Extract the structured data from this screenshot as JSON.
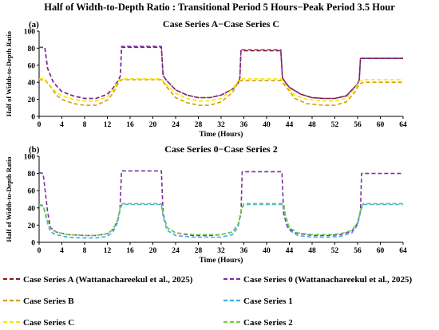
{
  "figure": {
    "title": "Half of Width-to-Depth Ratio  : Transitional Period 5 Hours−Peak Period 3.5 Hour"
  },
  "chart_data": [
    {
      "type": "line",
      "panel_label": "(a)",
      "title": "Case Series A−Case Series C",
      "xlabel": "Time (Hours)",
      "ylabel": "Half of Width-to-Depth Ratio",
      "xlim": [
        0,
        64
      ],
      "ylim": [
        0,
        100
      ],
      "xticks": [
        "0",
        "4",
        "8",
        "12",
        "16",
        "20",
        "24",
        "28",
        "32",
        "36",
        "40",
        "44",
        "48",
        "52",
        "56",
        "60",
        "64"
      ],
      "yticks": [
        "0",
        "20",
        "40",
        "60",
        "80",
        "100"
      ],
      "grid": false,
      "series": [
        {
          "name": "Case Series A (Wattanachareekul et al., 2025)",
          "color": "#8B1A1A",
          "points": [
            [
              0,
              81
            ],
            [
              1,
              81
            ],
            [
              1.5,
              56
            ],
            [
              2.5,
              40
            ],
            [
              4,
              29
            ],
            [
              6,
              24
            ],
            [
              8,
              21
            ],
            [
              10,
              21
            ],
            [
              12,
              26
            ],
            [
              13,
              33
            ],
            [
              14,
              43
            ],
            [
              14.3,
              48
            ],
            [
              14.5,
              81
            ],
            [
              21.5,
              81
            ],
            [
              21.8,
              48
            ],
            [
              22.3,
              43
            ],
            [
              23,
              38
            ],
            [
              24,
              31
            ],
            [
              26,
              25
            ],
            [
              28,
              22
            ],
            [
              30,
              22
            ],
            [
              32,
              25
            ],
            [
              34,
              32
            ],
            [
              35,
              39
            ],
            [
              35.3,
              45
            ],
            [
              35.5,
              77
            ],
            [
              42.5,
              77
            ],
            [
              42.8,
              45
            ],
            [
              43.3,
              40
            ],
            [
              44,
              34
            ],
            [
              46,
              26
            ],
            [
              48,
              22
            ],
            [
              50,
              21
            ],
            [
              52,
              21
            ],
            [
              54,
              24
            ],
            [
              55,
              31
            ],
            [
              56,
              38
            ],
            [
              56.3,
              43
            ],
            [
              56.5,
              68
            ],
            [
              64,
              68
            ]
          ]
        },
        {
          "name": "Case Series 0  (Wattanachareekul et al., 2025)",
          "color": "#7B2FA0",
          "points": [
            [
              0,
              81
            ],
            [
              1,
              81
            ],
            [
              1.5,
              56
            ],
            [
              2.5,
              40
            ],
            [
              4,
              29
            ],
            [
              6,
              24
            ],
            [
              8,
              21
            ],
            [
              10,
              21
            ],
            [
              12,
              26
            ],
            [
              13,
              33
            ],
            [
              14,
              43
            ],
            [
              14.3,
              48
            ],
            [
              14.5,
              82
            ],
            [
              21.5,
              82
            ],
            [
              21.8,
              48
            ],
            [
              22.3,
              43
            ],
            [
              23,
              38
            ],
            [
              24,
              31
            ],
            [
              26,
              25
            ],
            [
              28,
              22
            ],
            [
              30,
              22
            ],
            [
              32,
              25
            ],
            [
              34,
              32
            ],
            [
              35,
              39
            ],
            [
              35.3,
              45
            ],
            [
              35.5,
              78
            ],
            [
              42.5,
              78
            ],
            [
              42.8,
              45
            ],
            [
              43.3,
              40
            ],
            [
              44,
              34
            ],
            [
              46,
              26
            ],
            [
              48,
              22
            ],
            [
              50,
              21
            ],
            [
              52,
              21
            ],
            [
              54,
              24
            ],
            [
              55,
              31
            ],
            [
              56,
              38
            ],
            [
              56.3,
              43
            ],
            [
              56.5,
              68
            ],
            [
              64,
              68
            ]
          ]
        },
        {
          "name": "Case Series B",
          "color": "#D4A000",
          "points": [
            [
              0,
              43
            ],
            [
              1,
              43
            ],
            [
              2,
              35
            ],
            [
              3,
              25
            ],
            [
              4,
              20
            ],
            [
              6,
              15
            ],
            [
              8,
              13
            ],
            [
              10,
              13
            ],
            [
              12,
              19
            ],
            [
              13,
              27
            ],
            [
              14,
              40
            ],
            [
              14.5,
              43
            ],
            [
              21.5,
              43
            ],
            [
              22.5,
              34
            ],
            [
              24,
              22
            ],
            [
              26,
              16
            ],
            [
              28,
              13
            ],
            [
              30,
              13
            ],
            [
              32,
              17
            ],
            [
              34,
              28
            ],
            [
              35,
              40
            ],
            [
              35.5,
              42
            ],
            [
              42.5,
              42
            ],
            [
              43.5,
              34
            ],
            [
              45,
              21
            ],
            [
              47,
              15
            ],
            [
              50,
              13
            ],
            [
              52,
              13
            ],
            [
              54,
              17
            ],
            [
              55.5,
              28
            ],
            [
              56.3,
              38
            ],
            [
              57,
              40
            ],
            [
              64,
              40
            ]
          ]
        },
        {
          "name": "Case Series C",
          "color": "#F2E600",
          "points": [
            [
              0,
              44
            ],
            [
              1,
              44
            ],
            [
              2,
              36
            ],
            [
              3,
              28
            ],
            [
              4,
              24
            ],
            [
              6,
              20
            ],
            [
              8,
              18
            ],
            [
              10,
              18
            ],
            [
              12,
              23
            ],
            [
              13,
              31
            ],
            [
              14,
              42
            ],
            [
              14.5,
              44
            ],
            [
              21.5,
              44
            ],
            [
              22.5,
              36
            ],
            [
              24,
              27
            ],
            [
              26,
              21
            ],
            [
              28,
              18
            ],
            [
              30,
              18
            ],
            [
              32,
              21
            ],
            [
              34,
              32
            ],
            [
              35,
              42
            ],
            [
              35.5,
              44
            ],
            [
              42.5,
              44
            ],
            [
              43.5,
              36
            ],
            [
              45,
              25
            ],
            [
              47,
              20
            ],
            [
              50,
              18
            ],
            [
              52,
              18
            ],
            [
              54,
              21
            ],
            [
              55.5,
              32
            ],
            [
              56.3,
              41
            ],
            [
              57,
              43
            ],
            [
              64,
              43
            ]
          ]
        }
      ]
    },
    {
      "type": "line",
      "panel_label": "(b)",
      "title": "Case Series 0−Case Series 2",
      "xlabel": "Time (Hours)",
      "ylabel": "Half of Width-to-Depth Ratio",
      "xlim": [
        0,
        64
      ],
      "ylim": [
        0,
        100
      ],
      "xticks": [
        "0",
        "4",
        "8",
        "12",
        "16",
        "20",
        "24",
        "28",
        "32",
        "36",
        "40",
        "44",
        "48",
        "52",
        "56",
        "60",
        "64"
      ],
      "yticks": [
        "0",
        "20",
        "40",
        "60",
        "80",
        "100"
      ],
      "grid": false,
      "series": [
        {
          "name": "Case Series 0  (Wattanachareekul et al., 2025)",
          "color": "#7B2FA0",
          "points": [
            [
              0,
              81
            ],
            [
              0.7,
              80
            ],
            [
              1,
              64
            ],
            [
              1.5,
              35
            ],
            [
              2,
              17
            ],
            [
              3,
              12
            ],
            [
              5,
              9
            ],
            [
              8,
              8
            ],
            [
              10,
              8
            ],
            [
              12,
              10
            ],
            [
              13,
              15
            ],
            [
              13.8,
              25
            ],
            [
              14.2,
              37
            ],
            [
              14.5,
              83
            ],
            [
              21.5,
              83
            ],
            [
              21.8,
              34
            ],
            [
              22.5,
              17
            ],
            [
              24,
              11
            ],
            [
              27,
              8
            ],
            [
              30,
              8
            ],
            [
              32,
              9
            ],
            [
              34,
              12
            ],
            [
              35,
              21
            ],
            [
              35.5,
              33
            ],
            [
              35.7,
              82
            ],
            [
              42.7,
              82
            ],
            [
              43,
              33
            ],
            [
              43.7,
              17
            ],
            [
              45,
              11
            ],
            [
              48,
              8
            ],
            [
              51,
              8
            ],
            [
              53,
              9
            ],
            [
              55,
              13
            ],
            [
              56,
              22
            ],
            [
              56.5,
              36
            ],
            [
              56.7,
              80
            ],
            [
              64,
              80
            ]
          ]
        },
        {
          "name": "Case Series 1",
          "color": "#3BAEE6",
          "points": [
            [
              0,
              43
            ],
            [
              0.7,
              42
            ],
            [
              1,
              35
            ],
            [
              1.5,
              22
            ],
            [
              2,
              12
            ],
            [
              3,
              9
            ],
            [
              5,
              6
            ],
            [
              8,
              5
            ],
            [
              10,
              5
            ],
            [
              12,
              7
            ],
            [
              13,
              12
            ],
            [
              13.8,
              23
            ],
            [
              14.3,
              40
            ],
            [
              14.6,
              44
            ],
            [
              21.5,
              44
            ],
            [
              21.8,
              30
            ],
            [
              22.5,
              14
            ],
            [
              24,
              8
            ],
            [
              27,
              6
            ],
            [
              30,
              6
            ],
            [
              32,
              6
            ],
            [
              34,
              9
            ],
            [
              35,
              18
            ],
            [
              35.6,
              38
            ],
            [
              36,
              44
            ],
            [
              43,
              44
            ],
            [
              43.3,
              30
            ],
            [
              44,
              14
            ],
            [
              45.5,
              8
            ],
            [
              48,
              6
            ],
            [
              51,
              6
            ],
            [
              53,
              7
            ],
            [
              55,
              11
            ],
            [
              56,
              20
            ],
            [
              56.6,
              38
            ],
            [
              57,
              44
            ],
            [
              64,
              44
            ]
          ]
        },
        {
          "name": "Case Series 2",
          "color": "#7AC943",
          "points": [
            [
              0,
              44
            ],
            [
              0.7,
              43
            ],
            [
              1,
              37
            ],
            [
              1.5,
              25
            ],
            [
              2,
              15
            ],
            [
              3,
              12
            ],
            [
              5,
              9
            ],
            [
              8,
              8
            ],
            [
              10,
              8
            ],
            [
              12,
              10
            ],
            [
              13,
              15
            ],
            [
              13.8,
              26
            ],
            [
              14.3,
              42
            ],
            [
              14.6,
              45
            ],
            [
              21.5,
              45
            ],
            [
              21.8,
              32
            ],
            [
              22.5,
              17
            ],
            [
              24,
              11
            ],
            [
              27,
              9
            ],
            [
              30,
              9
            ],
            [
              32,
              9
            ],
            [
              34,
              12
            ],
            [
              35,
              21
            ],
            [
              35.6,
              40
            ],
            [
              36,
              45
            ],
            [
              43,
              45
            ],
            [
              43.3,
              32
            ],
            [
              44,
              17
            ],
            [
              45.5,
              11
            ],
            [
              48,
              9
            ],
            [
              51,
              9
            ],
            [
              53,
              10
            ],
            [
              55,
              14
            ],
            [
              56,
              23
            ],
            [
              56.6,
              40
            ],
            [
              57,
              45
            ],
            [
              64,
              45
            ]
          ]
        }
      ]
    }
  ],
  "legend": [
    {
      "label": "Case Series A (Wattanachareekul et al., 2025)",
      "color": "#8B1A1A"
    },
    {
      "label": "Case Series 0  (Wattanachareekul et al., 2025)",
      "color": "#7B2FA0"
    },
    {
      "label": "Case Series B",
      "color": "#D4A000"
    },
    {
      "label": "Case Series 1",
      "color": "#3BAEE6"
    },
    {
      "label": "Case Series C",
      "color": "#F2E600"
    },
    {
      "label": "Case Series 2",
      "color": "#7AC943"
    }
  ]
}
